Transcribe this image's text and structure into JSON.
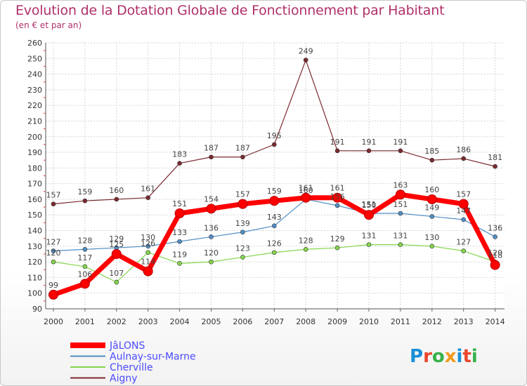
{
  "chart_data": {
    "type": "line",
    "title": "Evolution de la Dotation Globale de Fonctionnement par Habitant",
    "subtitle": "(en € et par an)",
    "xlabel": "",
    "ylabel": "",
    "x": [
      "2000",
      "2001",
      "2002",
      "2003",
      "2004",
      "2005",
      "2006",
      "2007",
      "2008",
      "2009",
      "2010",
      "2011",
      "2012",
      "2013",
      "2014"
    ],
    "ylim": [
      90,
      260
    ],
    "yticks": [
      90,
      100,
      110,
      120,
      130,
      140,
      150,
      160,
      170,
      180,
      190,
      200,
      210,
      220,
      230,
      240,
      250,
      260
    ],
    "grid": true,
    "legend_position": "bottom-left",
    "series": [
      {
        "name": "JâLONS",
        "color": "#ff0000",
        "values": [
          99,
          106,
          125,
          114,
          151,
          154,
          157,
          159,
          161,
          161,
          150,
          163,
          160,
          157,
          118
        ],
        "labels": [
          "99",
          "106",
          "125",
          "114",
          "151",
          "154",
          "157",
          "159",
          "161",
          "161",
          "150",
          "163",
          "160",
          "157",
          "118"
        ]
      },
      {
        "name": "Aulnay-sur-Marne",
        "color": "#4f8fc6",
        "values": [
          127,
          128,
          129,
          130,
          133,
          136,
          139,
          143,
          160,
          156,
          151,
          151,
          149,
          147,
          136
        ],
        "labels": [
          "127",
          "128",
          "129",
          "130",
          "133",
          "136",
          "139",
          "143",
          "160",
          "156",
          "151",
          "151",
          "149",
          "147",
          "136"
        ]
      },
      {
        "name": "Cherville",
        "color": "#84d64b",
        "values": [
          120,
          117,
          107,
          126,
          119,
          120,
          123,
          126,
          128,
          129,
          131,
          131,
          130,
          127,
          120
        ],
        "labels": [
          "120",
          "117",
          "107",
          "126",
          "119",
          "120",
          "123",
          "126",
          "128",
          "129",
          "131",
          "131",
          "130",
          "127",
          "120"
        ]
      },
      {
        "name": "Aigny",
        "color": "#7b2a2f",
        "values": [
          157,
          159,
          160,
          161,
          183,
          187,
          187,
          195,
          249,
          191,
          191,
          191,
          185,
          186,
          181
        ],
        "labels": [
          "157",
          "159",
          "160",
          "161",
          "183",
          "187",
          "187",
          "195",
          "249",
          "191",
          "191",
          "191",
          "185",
          "186",
          "181"
        ]
      }
    ]
  },
  "logo": {
    "text": "Proxiti",
    "letters": [
      "P",
      "r",
      "o",
      "x",
      "i",
      "t",
      "i"
    ],
    "colors": [
      "#1a8fd8",
      "#e8482c",
      "#36b14a",
      "#f39a1e",
      "#1a8fd8",
      "#e8482c",
      "#36b14a"
    ]
  }
}
